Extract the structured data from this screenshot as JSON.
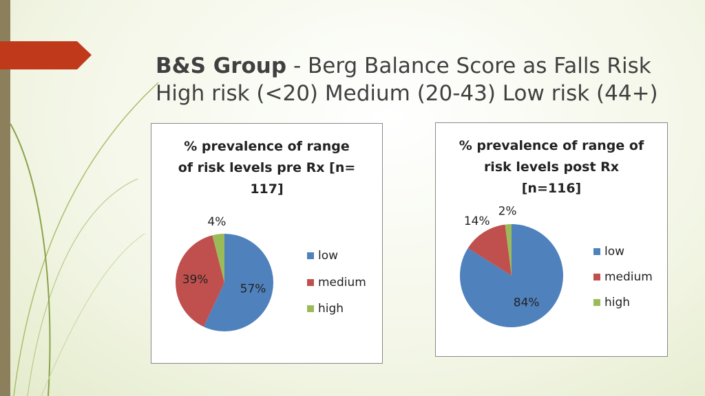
{
  "header": {
    "bold": "B&S Group",
    "title": "- Berg Balance Score as Falls Risk",
    "subtitle": "High risk (<20) Medium (20-43) Low risk (44+)"
  },
  "chart_data": [
    {
      "type": "pie",
      "title": "% prevalence of range\nof risk levels pre Rx [n=\n117]",
      "categories": [
        "low",
        "medium",
        "high"
      ],
      "values": [
        57,
        39,
        4
      ],
      "value_labels": [
        "57%",
        "39%",
        "4%"
      ],
      "colors": [
        "#4f81bd",
        "#c0504d",
        "#9bbb59"
      ],
      "legend": "right"
    },
    {
      "type": "pie",
      "title": "% prevalence of range of\nrisk levels post Rx\n[n=116]",
      "categories": [
        "low",
        "medium",
        "high"
      ],
      "values": [
        84,
        14,
        2
      ],
      "value_labels": [
        "84%",
        "14%",
        "2%"
      ],
      "colors": [
        "#4f81bd",
        "#c0504d",
        "#9bbb59"
      ],
      "legend": "right"
    }
  ]
}
